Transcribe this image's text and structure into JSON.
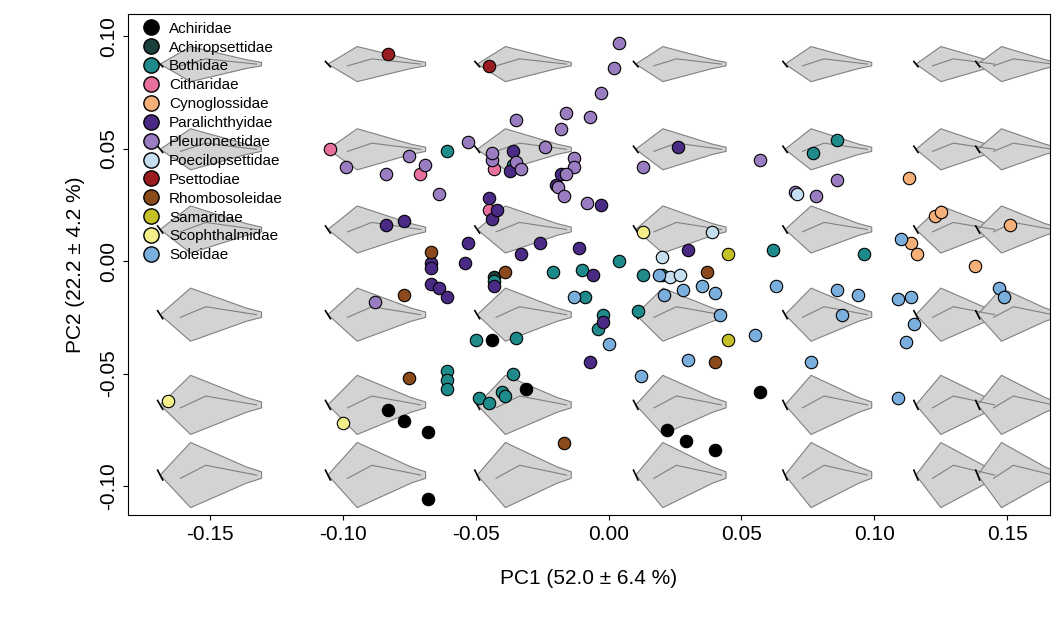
{
  "chart_data": {
    "type": "scatter",
    "x_label": "PC1 (52.0 ± 6.4 %)",
    "y_label": "PC2 (22.2 ± 4.2 %)",
    "xlim": [
      -0.181,
      0.166
    ],
    "ylim": [
      -0.113,
      0.11
    ],
    "xticks": [
      {
        "value": -0.15,
        "label": "-0.15"
      },
      {
        "value": -0.1,
        "label": "-0.10"
      },
      {
        "value": -0.05,
        "label": "-0.05"
      },
      {
        "value": 0.0,
        "label": "0.00"
      },
      {
        "value": 0.05,
        "label": "0.05"
      },
      {
        "value": 0.1,
        "label": "0.10"
      },
      {
        "value": 0.15,
        "label": "0.15"
      }
    ],
    "yticks": [
      {
        "value": -0.1,
        "label": "-0.10"
      },
      {
        "value": -0.05,
        "label": "-0.05"
      },
      {
        "value": 0.0,
        "label": "0.00"
      },
      {
        "value": 0.05,
        "label": "0.05"
      },
      {
        "value": 0.1,
        "label": "0.10"
      }
    ],
    "legend": "upper left",
    "grid": false,
    "marker": "circle",
    "series": [
      {
        "name": "Achiridae",
        "color": "#000000",
        "x": [
          -0.083,
          -0.077,
          -0.068,
          -0.068,
          -0.044,
          -0.031,
          0.022,
          0.029,
          0.04,
          0.057
        ],
        "y": [
          -0.066,
          -0.071,
          -0.076,
          -0.106,
          -0.035,
          -0.057,
          -0.075,
          -0.08,
          -0.084,
          -0.058
        ]
      },
      {
        "name": "Achiropsettidae",
        "color": "#1b3f3b",
        "x": [
          -0.043
        ],
        "y": [
          -0.007
        ]
      },
      {
        "name": "Bothidae",
        "color": "#1f8a8a",
        "x": [
          -0.061,
          -0.061,
          -0.061,
          -0.061,
          -0.05,
          -0.049,
          -0.045,
          -0.04,
          -0.039,
          -0.036,
          -0.035,
          -0.043,
          -0.036,
          -0.021,
          -0.01,
          -0.009,
          -0.004,
          -0.002,
          0.004,
          0.011,
          0.013,
          0.02,
          0.062,
          0.077,
          0.086,
          0.096
        ],
        "y": [
          0.049,
          -0.049,
          -0.053,
          -0.057,
          -0.035,
          -0.061,
          -0.063,
          -0.058,
          -0.06,
          -0.05,
          -0.034,
          -0.009,
          0.043,
          -0.005,
          -0.004,
          -0.016,
          -0.03,
          -0.024,
          0.0,
          -0.022,
          -0.006,
          -0.006,
          0.005,
          0.048,
          0.054,
          0.003
        ]
      },
      {
        "name": "Citharidae",
        "color": "#e8709f",
        "x": [
          -0.105,
          -0.071,
          -0.045,
          -0.043
        ],
        "y": [
          0.05,
          0.039,
          0.023,
          0.041
        ]
      },
      {
        "name": "Cynoglossidae",
        "color": "#f5b07a",
        "x": [
          0.113,
          0.114,
          0.116,
          0.123,
          0.125,
          0.138,
          0.151
        ],
        "y": [
          0.037,
          0.008,
          0.003,
          0.02,
          0.022,
          -0.002,
          0.016
        ]
      },
      {
        "name": "Paralichthyidae",
        "color": "#4b2a85",
        "x": [
          -0.084,
          -0.077,
          -0.067,
          -0.067,
          -0.067,
          -0.064,
          -0.061,
          -0.054,
          -0.053,
          -0.045,
          -0.044,
          -0.042,
          -0.043,
          -0.037,
          -0.036,
          -0.033,
          -0.026,
          -0.02,
          -0.018,
          -0.011,
          -0.006,
          -0.003,
          -0.002,
          -0.007,
          0.026,
          0.03
        ],
        "y": [
          0.016,
          0.018,
          -0.001,
          -0.003,
          -0.01,
          -0.012,
          -0.016,
          -0.001,
          0.008,
          0.028,
          0.019,
          0.023,
          -0.011,
          0.04,
          0.049,
          0.003,
          0.008,
          0.034,
          0.039,
          0.006,
          -0.006,
          0.025,
          -0.027,
          -0.045,
          0.051,
          0.005
        ]
      },
      {
        "name": "Pleuronectidae",
        "color": "#9a7cc0",
        "x": [
          -0.099,
          -0.088,
          -0.084,
          -0.075,
          -0.069,
          -0.064,
          -0.053,
          -0.044,
          -0.044,
          -0.035,
          -0.035,
          -0.033,
          -0.024,
          -0.018,
          -0.016,
          -0.013,
          -0.013,
          -0.016,
          -0.019,
          -0.017,
          -0.008,
          -0.007,
          -0.003,
          0.002,
          0.004,
          0.013,
          0.057,
          0.07,
          0.078,
          0.086
        ],
        "y": [
          0.042,
          -0.018,
          0.039,
          0.047,
          0.043,
          0.03,
          0.053,
          0.045,
          0.048,
          0.063,
          0.044,
          0.041,
          0.051,
          0.059,
          0.066,
          0.046,
          0.042,
          0.039,
          0.033,
          0.029,
          0.026,
          0.064,
          0.075,
          0.086,
          0.097,
          0.042,
          0.045,
          0.031,
          0.029,
          0.036
        ]
      },
      {
        "name": "Poecilopsettidae",
        "color": "#c6dff0",
        "x": [
          0.039,
          0.071,
          0.02,
          0.023,
          0.027
        ],
        "y": [
          0.013,
          0.03,
          0.002,
          -0.007,
          -0.006
        ]
      },
      {
        "name": "Psettodiae",
        "color": "#9b1c20",
        "x": [
          -0.083,
          -0.045
        ],
        "y": [
          0.092,
          0.087
        ]
      },
      {
        "name": "Rhombosoleidae",
        "color": "#8a4a1c",
        "x": [
          -0.077,
          -0.075,
          -0.067,
          -0.039,
          -0.017,
          0.037,
          0.04
        ],
        "y": [
          -0.015,
          -0.052,
          0.004,
          -0.005,
          -0.081,
          -0.005,
          -0.045
        ]
      },
      {
        "name": "Samaridae",
        "color": "#c6c028",
        "x": [
          0.045,
          0.045
        ],
        "y": [
          0.003,
          -0.035
        ]
      },
      {
        "name": "Scophthalmidae",
        "color": "#f3ee8a",
        "x": [
          -0.166,
          -0.1,
          0.013
        ],
        "y": [
          -0.062,
          -0.072,
          0.013
        ]
      },
      {
        "name": "Soleidae",
        "color": "#7aaedc",
        "x": [
          -0.013,
          0.0,
          0.012,
          0.021,
          0.028,
          0.03,
          0.035,
          0.04,
          0.042,
          0.055,
          0.063,
          0.076,
          0.086,
          0.088,
          0.094,
          0.109,
          0.109,
          0.11,
          0.112,
          0.114,
          0.115,
          0.147,
          0.149,
          0.019
        ],
        "y": [
          -0.016,
          -0.037,
          -0.051,
          -0.015,
          -0.013,
          -0.044,
          -0.011,
          -0.014,
          -0.024,
          -0.033,
          -0.011,
          -0.045,
          -0.013,
          -0.024,
          -0.015,
          -0.017,
          -0.061,
          0.01,
          -0.036,
          -0.016,
          -0.028,
          -0.012,
          -0.016,
          -0.006
        ]
      }
    ]
  }
}
